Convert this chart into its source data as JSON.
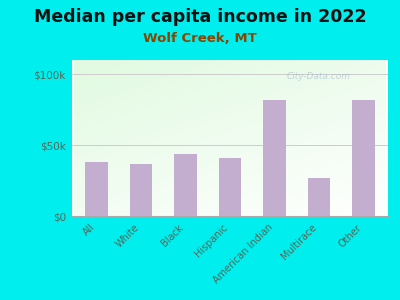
{
  "title": "Median per capita income in 2022",
  "subtitle": "Wolf Creek, MT",
  "categories": [
    "All",
    "White",
    "Black",
    "Hispanic",
    "American Indian",
    "Multirace",
    "Other"
  ],
  "values": [
    38000,
    37000,
    44000,
    41000,
    82000,
    27000,
    82000
  ],
  "bar_color": "#c4aed0",
  "background_outer": "#00EEEE",
  "title_fontsize": 12.5,
  "subtitle_fontsize": 9.5,
  "subtitle_color": "#884400",
  "title_color": "#111111",
  "tick_label_color": "#556655",
  "yticks": [
    0,
    50000,
    100000
  ],
  "ytick_labels": [
    "$0",
    "$50k",
    "$100k"
  ],
  "ylim": [
    0,
    110000
  ],
  "watermark": "City-Data.com",
  "figsize": [
    4.0,
    3.0
  ],
  "dpi": 100
}
